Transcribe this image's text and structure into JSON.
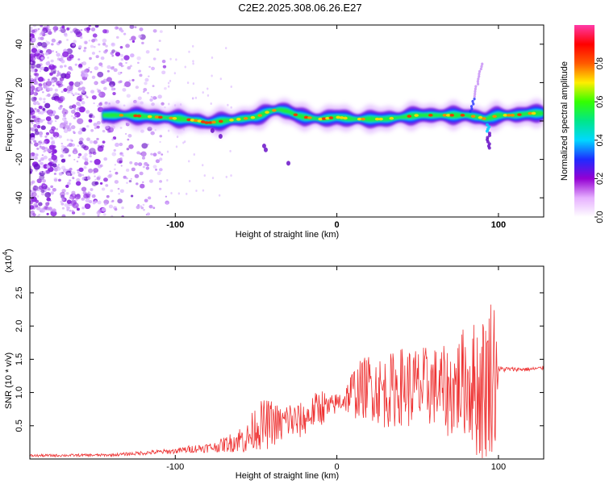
{
  "title": "C2E2.2025.308.06.26.E27",
  "chart_data": [
    {
      "type": "heatmap",
      "panel": "spectrogram",
      "xlabel": "Height of straight line (km)",
      "ylabel": "Frequency (Hz)",
      "xlim": [
        -190,
        128
      ],
      "ylim": [
        -50,
        50
      ],
      "xticks": [
        -100,
        0,
        100
      ],
      "xtick_labels": [
        "-100",
        "0",
        "100"
      ],
      "yticks": [
        -40,
        -20,
        0,
        20,
        40
      ],
      "ytick_labels": [
        "-40",
        "-20",
        "0",
        "20",
        "40"
      ],
      "ridge": {
        "x": [
          -145,
          -130,
          -110,
          -95,
          -85,
          -80,
          -70,
          -60,
          -50,
          -42,
          -36,
          -30,
          -25,
          -20,
          -10,
          0,
          10,
          20,
          30,
          40,
          50,
          60,
          70,
          80,
          88,
          92,
          96,
          100,
          110,
          120,
          128
        ],
        "y": [
          3,
          3,
          2,
          1,
          0,
          -1,
          0,
          1,
          2,
          5,
          6,
          5,
          3,
          2,
          1,
          2,
          1,
          1,
          1,
          2,
          3,
          3,
          3,
          3,
          2,
          1,
          2,
          3,
          3,
          4,
          4
        ]
      },
      "noise_region_x": [
        -190,
        -105
      ],
      "colorbar": {
        "label": "Normalized spectral amplitude",
        "range": [
          0.0,
          1.0
        ],
        "ticks": [
          "0.0",
          "0.2",
          "0.4",
          "0.6",
          "0.8"
        ],
        "colors": [
          "#ffffff",
          "#e6b0ff",
          "#9400d3",
          "#1e2bff",
          "#00d8ff",
          "#00e68a",
          "#33ff00",
          "#ffee00",
          "#ff5a00",
          "#ff0000",
          "#ff3aa8"
        ]
      }
    },
    {
      "type": "line",
      "panel": "snr",
      "xlabel": "Height of straight line (km)",
      "ylabel": "SNR (10 * v/v)",
      "scale_label": "(x10",
      "scale_exp": "4",
      "xlim": [
        -190,
        128
      ],
      "ylim": [
        0,
        2.9
      ],
      "xticks": [
        -100,
        0,
        100
      ],
      "xtick_labels": [
        "-100",
        "0",
        "100"
      ],
      "yticks": [
        0.5,
        1.0,
        1.5,
        2.0,
        2.5
      ],
      "ytick_labels": [
        "0.5",
        "1.0",
        "1.5",
        "2.0",
        "2.5"
      ],
      "color": "#ee3333",
      "envelope": {
        "x": [
          -190,
          -140,
          -100,
          -90,
          -75,
          -65,
          -60,
          -55,
          -50,
          -45,
          -40,
          -35,
          -30,
          -25,
          -20,
          -15,
          -10,
          -5,
          0,
          5,
          10,
          20,
          30,
          40,
          50,
          60,
          70,
          80,
          85,
          90,
          95,
          98,
          100,
          110,
          120,
          128
        ],
        "center": [
          0.05,
          0.06,
          0.12,
          0.15,
          0.18,
          0.25,
          0.3,
          0.3,
          0.5,
          0.5,
          0.55,
          0.5,
          0.6,
          0.55,
          0.6,
          0.7,
          0.8,
          0.75,
          0.85,
          0.9,
          1.0,
          1.1,
          1.0,
          1.1,
          1.05,
          1.1,
          1.0,
          1.2,
          1.1,
          1.0,
          1.3,
          1.35,
          1.35,
          1.35,
          1.35,
          1.37
        ],
        "amplitude": [
          0.02,
          0.02,
          0.04,
          0.06,
          0.08,
          0.15,
          0.2,
          0.25,
          0.35,
          0.4,
          0.35,
          0.3,
          0.3,
          0.3,
          0.25,
          0.25,
          0.3,
          0.2,
          0.15,
          0.2,
          0.4,
          0.5,
          0.55,
          0.6,
          0.65,
          0.6,
          0.7,
          0.85,
          1.0,
          1.2,
          1.2,
          1.3,
          0.05,
          0.03,
          0.03,
          0.03
        ]
      }
    }
  ]
}
